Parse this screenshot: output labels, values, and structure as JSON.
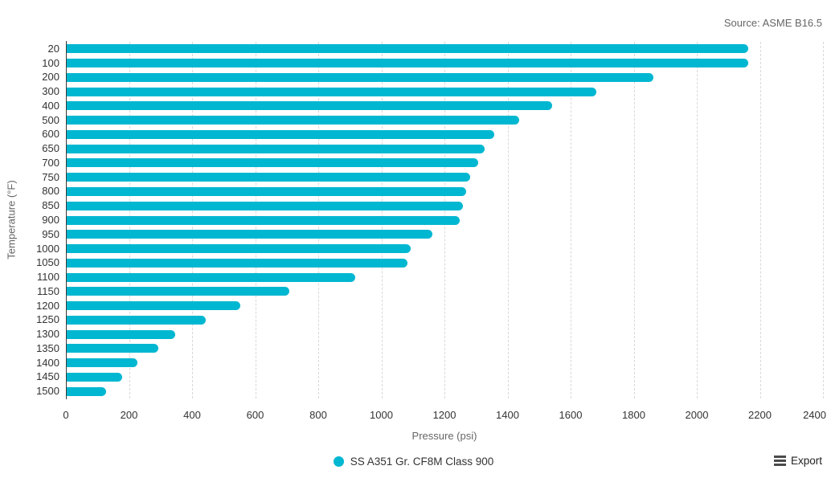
{
  "source_note": "Source: ASME B16.5",
  "export": {
    "label": "Export"
  },
  "legend": {
    "items": [
      {
        "label": "SS A351 Gr. CF8M Class 900",
        "color": "#00b7d1"
      }
    ]
  },
  "colors": {
    "bar": "#00b7d1",
    "axis_line": "#383838",
    "gridline": "#d8d8d8",
    "tick_text": "#333333",
    "axis_title_text": "#666666",
    "source_text": "#666666"
  },
  "chart_data": {
    "type": "bar",
    "orientation": "horizontal",
    "title": "",
    "xlabel": "Pressure (psi)",
    "ylabel": "Temperature (°F)",
    "xlim": [
      0,
      2400
    ],
    "x_ticks": [
      0,
      200,
      400,
      600,
      800,
      1000,
      1200,
      1400,
      1600,
      1800,
      2000,
      2200,
      2400
    ],
    "grid": "vertical-dashed",
    "legend_position": "bottom-center",
    "categories": [
      "20",
      "100",
      "200",
      "300",
      "400",
      "500",
      "600",
      "650",
      "700",
      "750",
      "800",
      "850",
      "900",
      "950",
      "1000",
      "1050",
      "1100",
      "1150",
      "1200",
      "1250",
      "1300",
      "1350",
      "1400",
      "1450",
      "1500"
    ],
    "series": [
      {
        "name": "SS A351 Gr. CF8M Class 900",
        "color": "#00b7d1",
        "values": [
          2160,
          2160,
          1860,
          1680,
          1540,
          1435,
          1355,
          1325,
          1305,
          1280,
          1265,
          1255,
          1245,
          1160,
          1090,
          1080,
          915,
          705,
          550,
          440,
          345,
          290,
          225,
          175,
          125
        ]
      }
    ]
  }
}
